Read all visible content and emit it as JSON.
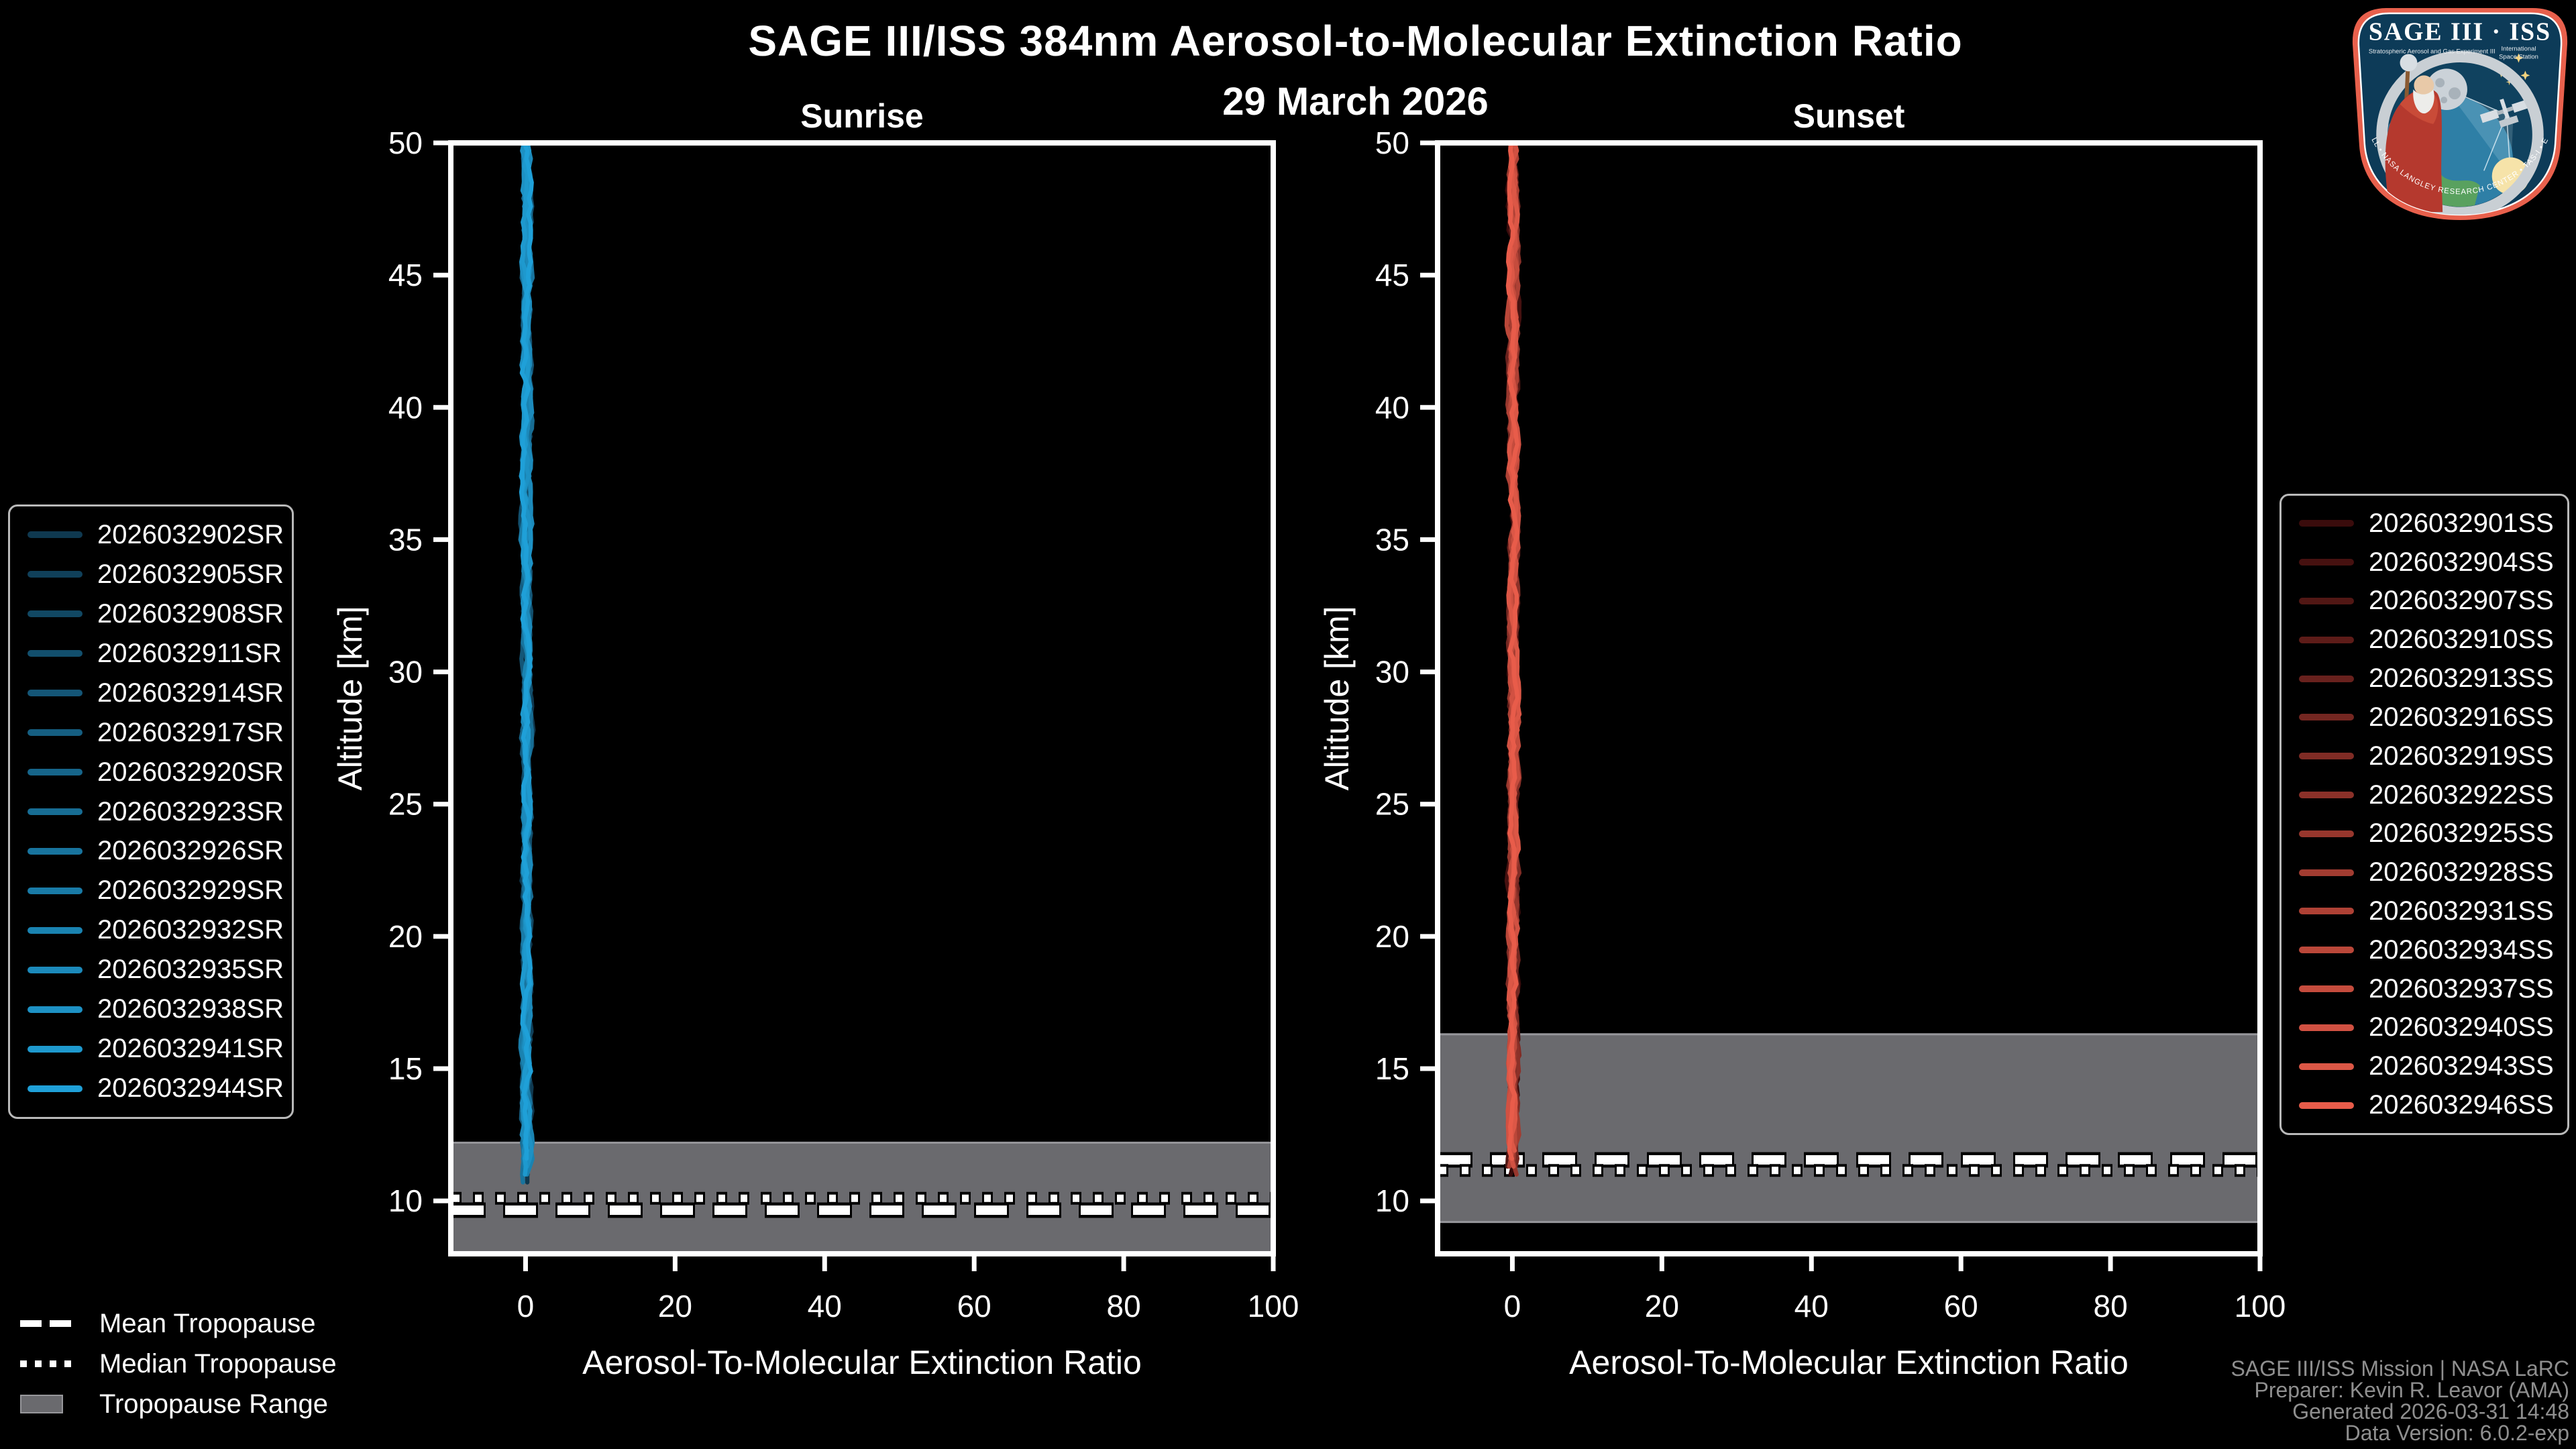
{
  "header": {
    "title": "SAGE III/ISS 384nm Aerosol-to-Molecular Extinction Ratio",
    "subtitle": "29 March 2026"
  },
  "colors": {
    "background": "#000000",
    "axis": "#FFFFFF",
    "band": "#6A6A6E",
    "band_edge": "#97979B",
    "footer_text": "#8F8F8F",
    "sunrise_accent": "#1FA0D8",
    "sunset_accent": "#E85C4A",
    "logo_border": "#E8604C",
    "logo_field": "#0D3B58"
  },
  "chart_data": [
    {
      "type": "line",
      "title": "Sunrise",
      "xlabel": "Aerosol-To-Molecular Extinction Ratio",
      "ylabel": "Altitude [km]",
      "xlim": [
        -10,
        100
      ],
      "ylim": [
        8,
        50
      ],
      "xticks": [
        0,
        20,
        40,
        60,
        80,
        100
      ],
      "yticks": [
        50,
        45,
        40,
        35,
        30,
        25,
        20,
        15,
        10
      ],
      "grid": false,
      "profiles": {
        "ratio_approx": 0,
        "alt_top": 50,
        "alt_bottom": 11.0,
        "spread": 0.6
      },
      "tropopause": {
        "mean_km": 9.65,
        "median_km": 10.1,
        "range_km": [
          8,
          12.2
        ]
      },
      "series": [
        {
          "name": "2026032902SR",
          "color": "#0F3950"
        },
        {
          "name": "2026032905SR",
          "color": "#10405A"
        },
        {
          "name": "2026032908SR",
          "color": "#114863"
        },
        {
          "name": "2026032911SR",
          "color": "#124F6D"
        },
        {
          "name": "2026032914SR",
          "color": "#145677"
        },
        {
          "name": "2026032917SR",
          "color": "#155E81"
        },
        {
          "name": "2026032920SR",
          "color": "#16658A"
        },
        {
          "name": "2026032923SR",
          "color": "#176D94"
        },
        {
          "name": "2026032926SR",
          "color": "#18749E"
        },
        {
          "name": "2026032929SR",
          "color": "#197BA7"
        },
        {
          "name": "2026032932SR",
          "color": "#1A83B1"
        },
        {
          "name": "2026032935SR",
          "color": "#1C8ABB"
        },
        {
          "name": "2026032938SR",
          "color": "#1D91C4"
        },
        {
          "name": "2026032941SR",
          "color": "#1E99CE"
        },
        {
          "name": "2026032944SR",
          "color": "#1FA0D8"
        }
      ]
    },
    {
      "type": "line",
      "title": "Sunset",
      "xlabel": "Aerosol-To-Molecular Extinction Ratio",
      "ylabel": "Altitude [km]",
      "xlim": [
        -10,
        100
      ],
      "ylim": [
        8,
        50
      ],
      "xticks": [
        0,
        20,
        40,
        60,
        80,
        100
      ],
      "yticks": [
        50,
        45,
        40,
        35,
        30,
        25,
        20,
        15,
        10
      ],
      "grid": false,
      "profiles": {
        "ratio_approx": 0,
        "alt_top": 50,
        "alt_bottom": 11.35,
        "spread": 0.6
      },
      "tropopause": {
        "mean_km": 11.55,
        "median_km": 11.15,
        "range_km": [
          9.2,
          16.3
        ]
      },
      "series": [
        {
          "name": "2026032901SS",
          "color": "#3A0C0C"
        },
        {
          "name": "2026032904SS",
          "color": "#461110"
        },
        {
          "name": "2026032907SS",
          "color": "#511714"
        },
        {
          "name": "2026032910SS",
          "color": "#5D1C18"
        },
        {
          "name": "2026032913SS",
          "color": "#68211D"
        },
        {
          "name": "2026032916SS",
          "color": "#742721"
        },
        {
          "name": "2026032919SS",
          "color": "#802C25"
        },
        {
          "name": "2026032922SS",
          "color": "#8B3129"
        },
        {
          "name": "2026032925SS",
          "color": "#97372D"
        },
        {
          "name": "2026032928SS",
          "color": "#A23C31"
        },
        {
          "name": "2026032931SS",
          "color": "#AE4135"
        },
        {
          "name": "2026032934SS",
          "color": "#BA4739"
        },
        {
          "name": "2026032937SS",
          "color": "#C54C3D"
        },
        {
          "name": "2026032940SS",
          "color": "#D15142"
        },
        {
          "name": "2026032943SS",
          "color": "#DC5746"
        },
        {
          "name": "2026032946SS",
          "color": "#E85C4A"
        }
      ]
    }
  ],
  "tropopause_legend": {
    "mean_label": "Mean Tropopause",
    "median_label": "Median Tropopause",
    "range_label": "Tropopause Range"
  },
  "footer": {
    "lines": [
      "SAGE III/ISS Mission | NASA LaRC",
      "Preparer: Kevin R. Leavor (AMA)",
      "Generated 2026-03-31 14:48",
      "Data Version: 6.0.2-exp"
    ]
  },
  "logo": {
    "title": "SAGE III · ISS",
    "subtitle": "Stratospheric Aerosol and Gas Experiment III",
    "right_line1": "International",
    "right_line2": "Space Station",
    "ring_text": "BALL • NASA LANGLEY RESEARCH CENTER • TAS-I • ESA"
  }
}
